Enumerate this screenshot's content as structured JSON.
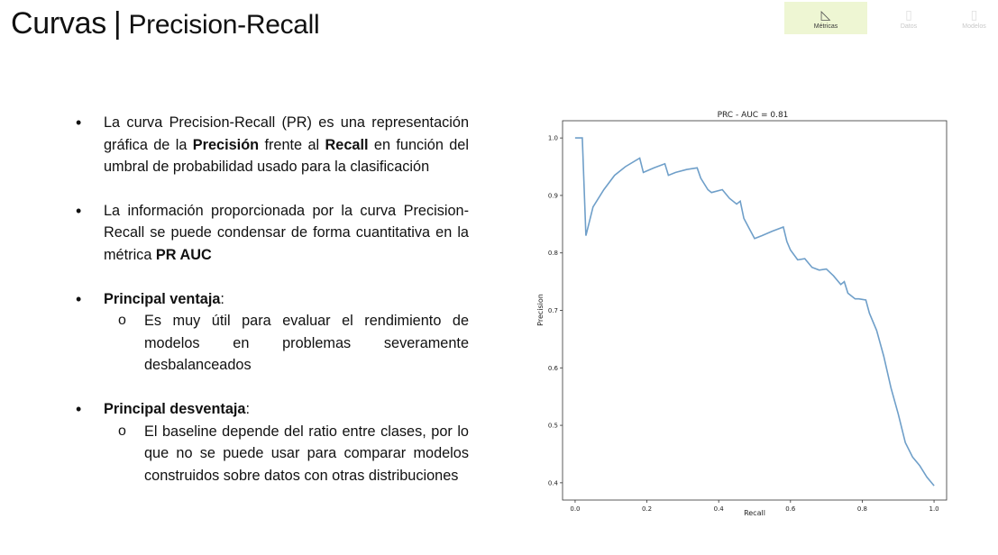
{
  "header": {
    "title_main": "Curvas",
    "separator": "|",
    "title_sub": "Precision-Recall"
  },
  "nav": {
    "tabs": [
      {
        "label": "Métricas",
        "icon": "ruler-triangle-icon",
        "active": true
      },
      {
        "label": "Datos",
        "icon": "document-icon",
        "active": false
      },
      {
        "label": "Modelos",
        "icon": "document-icon",
        "active": false
      }
    ]
  },
  "content": {
    "b1": {
      "t1": "La curva Precision-Recall (PR) es una representación gráfica de la ",
      "t2": "Precisión",
      "t3": " frente al ",
      "t4": "Recall",
      "t5": " en función del umbral de probabilidad usado para la clasificación"
    },
    "b2": {
      "t1": "La información proporcionada por la curva Precision-Recall se puede condensar de forma cuantitativa en la métrica ",
      "t2": "PR AUC"
    },
    "b3": {
      "heading": "Principal ventaja",
      "colon": ":",
      "sub": "Es muy útil para evaluar el rendimiento de modelos en problemas severamente desbalanceados"
    },
    "b4": {
      "heading": "Principal desventaja",
      "colon": ":",
      "sub": "El baseline depende del ratio entre clases, por lo que no se puede usar para comparar modelos construidos sobre datos con otras distribuciones"
    }
  },
  "chart_data": {
    "type": "line",
    "title": "PRC - AUC = 0.81",
    "xlabel": "Recall",
    "ylabel": "Precision",
    "xlim": [
      -0.035,
      1.035
    ],
    "ylim": [
      0.37,
      1.03
    ],
    "xticks": [
      0.0,
      0.2,
      0.4,
      0.6,
      0.8,
      1.0
    ],
    "xtick_labels": [
      "0.0",
      "0.2",
      "0.4",
      "0.6",
      "0.8",
      "1.0"
    ],
    "yticks": [
      0.4,
      0.5,
      0.6,
      0.7,
      0.8,
      0.9,
      1.0
    ],
    "ytick_labels": [
      "0.4",
      "0.5",
      "0.6",
      "0.7",
      "0.8",
      "0.9",
      "1.0"
    ],
    "grid": false,
    "colors": {
      "line": "#6f9fc9"
    },
    "series": [
      {
        "x": [
          0.0,
          0.02,
          0.03,
          0.05,
          0.08,
          0.11,
          0.14,
          0.18,
          0.19,
          0.22,
          0.25,
          0.26,
          0.28,
          0.31,
          0.34,
          0.35,
          0.37,
          0.38,
          0.41,
          0.43,
          0.45,
          0.46,
          0.47,
          0.5,
          0.52,
          0.55,
          0.58,
          0.59,
          0.6,
          0.62,
          0.64,
          0.66,
          0.68,
          0.7,
          0.72,
          0.74,
          0.75,
          0.76,
          0.78,
          0.79,
          0.81,
          0.82,
          0.84,
          0.86,
          0.88,
          0.9,
          0.92,
          0.94,
          0.96,
          0.98,
          1.0
        ],
        "y": [
          1.0,
          1.0,
          0.83,
          0.88,
          0.91,
          0.935,
          0.95,
          0.965,
          0.94,
          0.948,
          0.955,
          0.935,
          0.94,
          0.945,
          0.948,
          0.93,
          0.91,
          0.905,
          0.91,
          0.895,
          0.885,
          0.89,
          0.86,
          0.825,
          0.83,
          0.838,
          0.845,
          0.82,
          0.805,
          0.788,
          0.79,
          0.775,
          0.77,
          0.772,
          0.76,
          0.745,
          0.75,
          0.73,
          0.72,
          0.72,
          0.718,
          0.695,
          0.665,
          0.62,
          0.565,
          0.52,
          0.47,
          0.445,
          0.43,
          0.41,
          0.395
        ]
      }
    ]
  }
}
